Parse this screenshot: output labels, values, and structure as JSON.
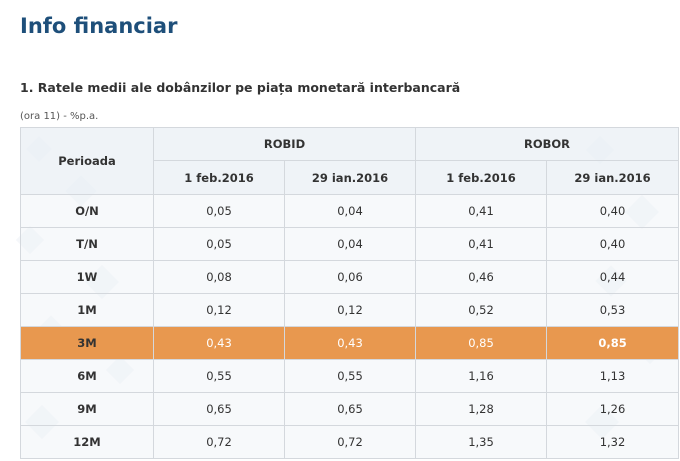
{
  "page_title": "Info financiar",
  "section_title": "1. Ratele medii ale dobânzilor pe piața monetară interbancară",
  "note": "(ora 11) - %p.a.",
  "table": {
    "period_header": "Perioada",
    "groups": [
      "ROBID",
      "ROBOR"
    ],
    "dates": [
      "1 feb.2016",
      "29 ian.2016",
      "1 feb.2016",
      "29 ian.2016"
    ],
    "rows": [
      {
        "period": "O/N",
        "values": [
          "0,05",
          "0,04",
          "0,41",
          "0,40"
        ]
      },
      {
        "period": "T/N",
        "values": [
          "0,05",
          "0,04",
          "0,41",
          "0,40"
        ]
      },
      {
        "period": "1W",
        "values": [
          "0,08",
          "0,06",
          "0,46",
          "0,44"
        ]
      },
      {
        "period": "1M",
        "values": [
          "0,12",
          "0,12",
          "0,52",
          "0,53"
        ]
      },
      {
        "period": "3M",
        "values": [
          "0,43",
          "0,43",
          "0,85",
          "0,85"
        ]
      },
      {
        "period": "6M",
        "values": [
          "0,55",
          "0,55",
          "1,16",
          "1,13"
        ]
      },
      {
        "period": "9M",
        "values": [
          "0,65",
          "0,65",
          "1,28",
          "1,26"
        ]
      },
      {
        "period": "12M",
        "values": [
          "0,72",
          "0,72",
          "1,35",
          "1,32"
        ]
      }
    ],
    "highlight_row": "3M"
  },
  "colors": {
    "title": "#1e4f7a",
    "highlight_row": "#e8984f",
    "border": "#d4d8dd"
  }
}
